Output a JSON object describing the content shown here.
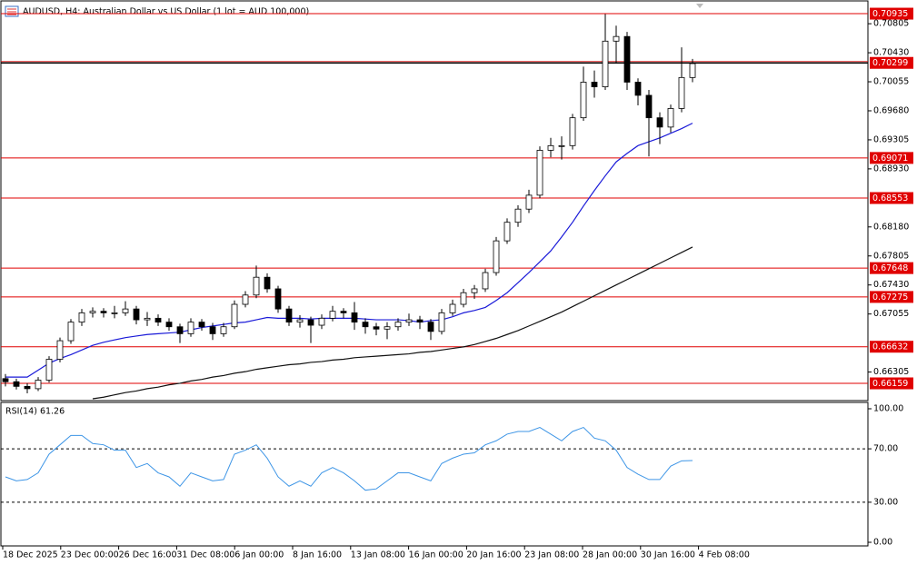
{
  "chart_data": [
    {
      "type": "candlestick",
      "title": "AUDUSD, H4:  Australian Dollar vs US Dollar (1 lot = AUD 100,000)",
      "x_labels": [
        "18 Dec 2025",
        "23 Dec 00:00",
        "26 Dec 16:00",
        "31 Dec 08:00",
        "6 Jan 00:00",
        "8 Jan 16:00",
        "13 Jan 08:00",
        "16 Jan 00:00",
        "20 Jan 16:00",
        "23 Jan 08:00",
        "28 Jan 00:00",
        "30 Jan 16:00",
        "4 Feb 08:00"
      ],
      "candles": [
        [
          0.6622,
          0.6628,
          0.6612,
          0.6618
        ],
        [
          0.6618,
          0.6622,
          0.6608,
          0.6612
        ],
        [
          0.6612,
          0.6616,
          0.6603,
          0.6609
        ],
        [
          0.6609,
          0.6624,
          0.6606,
          0.662
        ],
        [
          0.662,
          0.6651,
          0.6617,
          0.6647
        ],
        [
          0.6647,
          0.6675,
          0.6643,
          0.6671
        ],
        [
          0.6671,
          0.6699,
          0.6667,
          0.6695
        ],
        [
          0.6695,
          0.6712,
          0.669,
          0.6707
        ],
        [
          0.6707,
          0.6714,
          0.6701,
          0.6709
        ],
        [
          0.6709,
          0.6713,
          0.6701,
          0.6707
        ],
        [
          0.6707,
          0.6716,
          0.67,
          0.6707
        ],
        [
          0.6707,
          0.6722,
          0.6703,
          0.6712
        ],
        [
          0.6712,
          0.6716,
          0.6692,
          0.6698
        ],
        [
          0.6698,
          0.6708,
          0.669,
          0.67
        ],
        [
          0.67,
          0.6705,
          0.669,
          0.6695
        ],
        [
          0.6695,
          0.67,
          0.6684,
          0.6689
        ],
        [
          0.6689,
          0.6693,
          0.6668,
          0.668
        ],
        [
          0.668,
          0.67,
          0.6676,
          0.6695
        ],
        [
          0.6695,
          0.6699,
          0.6684,
          0.6689
        ],
        [
          0.6689,
          0.6694,
          0.6672,
          0.668
        ],
        [
          0.668,
          0.6694,
          0.6676,
          0.6689
        ],
        [
          0.6689,
          0.6723,
          0.6686,
          0.6718
        ],
        [
          0.6718,
          0.6735,
          0.6714,
          0.673
        ],
        [
          0.673,
          0.6768,
          0.6726,
          0.6753
        ],
        [
          0.6753,
          0.6758,
          0.6733,
          0.6738
        ],
        [
          0.6738,
          0.6742,
          0.6707,
          0.6712
        ],
        [
          0.6712,
          0.6716,
          0.669,
          0.6695
        ],
        [
          0.6695,
          0.6704,
          0.6688,
          0.6698
        ],
        [
          0.6698,
          0.6702,
          0.6668,
          0.6691
        ],
        [
          0.6691,
          0.6705,
          0.6686,
          0.67
        ],
        [
          0.67,
          0.6716,
          0.6696,
          0.6709
        ],
        [
          0.6709,
          0.6713,
          0.67,
          0.6707
        ],
        [
          0.6707,
          0.6721,
          0.6685,
          0.6695
        ],
        [
          0.6695,
          0.67,
          0.668,
          0.6689
        ],
        [
          0.6689,
          0.6694,
          0.6678,
          0.6686
        ],
        [
          0.6686,
          0.6695,
          0.6673,
          0.6689
        ],
        [
          0.6689,
          0.67,
          0.6684,
          0.6695
        ],
        [
          0.6695,
          0.6706,
          0.669,
          0.6698
        ],
        [
          0.6698,
          0.6703,
          0.6686,
          0.6695
        ],
        [
          0.6695,
          0.6699,
          0.6672,
          0.6683
        ],
        [
          0.6683,
          0.6712,
          0.6679,
          0.6707
        ],
        [
          0.6707,
          0.6724,
          0.6703,
          0.6718
        ],
        [
          0.6718,
          0.6738,
          0.6714,
          0.6733
        ],
        [
          0.6733,
          0.6743,
          0.6725,
          0.6738
        ],
        [
          0.6738,
          0.6764,
          0.6734,
          0.6759
        ],
        [
          0.6759,
          0.6805,
          0.6755,
          0.68
        ],
        [
          0.68,
          0.6829,
          0.6796,
          0.6824
        ],
        [
          0.6824,
          0.6846,
          0.6818,
          0.6841
        ],
        [
          0.6841,
          0.6866,
          0.6836,
          0.6859
        ],
        [
          0.6859,
          0.6922,
          0.6855,
          0.6917
        ],
        [
          0.6917,
          0.6933,
          0.6908,
          0.6923
        ],
        [
          0.6923,
          0.6935,
          0.6905,
          0.6923
        ],
        [
          0.6923,
          0.6964,
          0.6918,
          0.6959
        ],
        [
          0.6959,
          0.7025,
          0.6955,
          0.7005
        ],
        [
          0.7005,
          0.702,
          0.6985,
          0.6999
        ],
        [
          0.6999,
          0.7093,
          0.6995,
          0.7058
        ],
        [
          0.7058,
          0.7078,
          0.703,
          0.7064
        ],
        [
          0.7064,
          0.707,
          0.6995,
          0.7005
        ],
        [
          0.7005,
          0.701,
          0.6975,
          0.6988
        ],
        [
          0.6988,
          0.6995,
          0.6909,
          0.6959
        ],
        [
          0.6959,
          0.6966,
          0.6925,
          0.6947
        ],
        [
          0.6947,
          0.6976,
          0.694,
          0.6971
        ],
        [
          0.6971,
          0.705,
          0.6966,
          0.7011
        ],
        [
          0.7011,
          0.7035,
          0.7005,
          0.7029
        ]
      ],
      "up_color": "#ffffff",
      "down_color": "#000000",
      "series": [
        {
          "color": "#1a1ad8",
          "values": [
            0.6624,
            0.6624,
            0.6624,
            0.6633,
            0.6642,
            0.6648,
            0.6653,
            0.6659,
            0.6665,
            0.6669,
            0.6672,
            0.6675,
            0.6677,
            0.6679,
            0.668,
            0.6681,
            0.6682,
            0.6685,
            0.6688,
            0.669,
            0.6692,
            0.6694,
            0.6695,
            0.6698,
            0.6701,
            0.67,
            0.67,
            0.67,
            0.6699,
            0.67,
            0.67,
            0.67,
            0.67,
            0.6699,
            0.6698,
            0.6698,
            0.6698,
            0.6697,
            0.6695,
            0.6697,
            0.6698,
            0.6702,
            0.6707,
            0.671,
            0.6714,
            0.6723,
            0.6733,
            0.6746,
            0.6759,
            0.6773,
            0.6787,
            0.6805,
            0.6824,
            0.6845,
            0.6865,
            0.6884,
            0.6902,
            0.6913,
            0.6923,
            0.6928,
            0.6933,
            0.6939,
            0.6945,
            0.6952
          ]
        },
        {
          "color": "#111111",
          "values": [
            null,
            null,
            null,
            null,
            null,
            null,
            null,
            null,
            0.6596,
            0.6598,
            0.6601,
            0.6604,
            0.6606,
            0.6609,
            0.6611,
            0.6614,
            0.6616,
            0.6619,
            0.6621,
            0.6624,
            0.6626,
            0.6629,
            0.6631,
            0.6634,
            0.6636,
            0.6638,
            0.664,
            0.6641,
            0.6643,
            0.6644,
            0.6646,
            0.6647,
            0.6649,
            0.665,
            0.6651,
            0.6652,
            0.6653,
            0.6654,
            0.6656,
            0.6657,
            0.6659,
            0.6661,
            0.6663,
            0.6666,
            0.667,
            0.6674,
            0.6679,
            0.6684,
            0.669,
            0.6696,
            0.6702,
            0.6708,
            0.6715,
            0.6722,
            0.6729,
            0.6736,
            0.6743,
            0.675,
            0.6757,
            0.6764,
            0.6771,
            0.6778,
            0.6785,
            0.6792
          ]
        }
      ],
      "levels": [
        0.70935,
        0.69071,
        0.68553,
        0.67648,
        0.67275,
        0.66632,
        0.66159
      ],
      "level_color": "#e00000",
      "bid": 0.70299,
      "ylim": [
        0.65948,
        0.71088
      ],
      "yticks": [
        0.70805,
        {
          "value": 0.7043,
          "label": "0.70430"
        },
        0.70055,
        {
          "value": 0.6968,
          "label": "0.69680"
        },
        0.69305,
        {
          "value": 0.6893,
          "label": "0.68930"
        },
        {
          "value": 0.6818,
          "label": "0.68180"
        },
        0.67805,
        {
          "value": 0.6743,
          "label": "0.67430"
        },
        0.67055,
        0.66305
      ]
    },
    {
      "type": "line",
      "title": "RSI(14) 61.26",
      "values": [
        49,
        46,
        47,
        52,
        66,
        73,
        80,
        80,
        74,
        73,
        69,
        69,
        56,
        59,
        52,
        49,
        42,
        52,
        49,
        46,
        47,
        66,
        69,
        73,
        63,
        49,
        42,
        46,
        42,
        52,
        56,
        52,
        46,
        39,
        40,
        46,
        52,
        52,
        49,
        46,
        59,
        63,
        66,
        67,
        73,
        76,
        81,
        83,
        83,
        86,
        81,
        76,
        83,
        86,
        78,
        76,
        69,
        56,
        51,
        47,
        47,
        57,
        61,
        61.26
      ],
      "color": "#3d95e6",
      "ylim": [
        0,
        100
      ],
      "yticks": [
        {
          "value": 100,
          "label": "100.00"
        },
        {
          "value": 70,
          "label": "70.00"
        },
        {
          "value": 30,
          "label": "30.00"
        },
        {
          "value": 0,
          "label": "0.00"
        }
      ],
      "levels": [
        70,
        30
      ]
    }
  ]
}
